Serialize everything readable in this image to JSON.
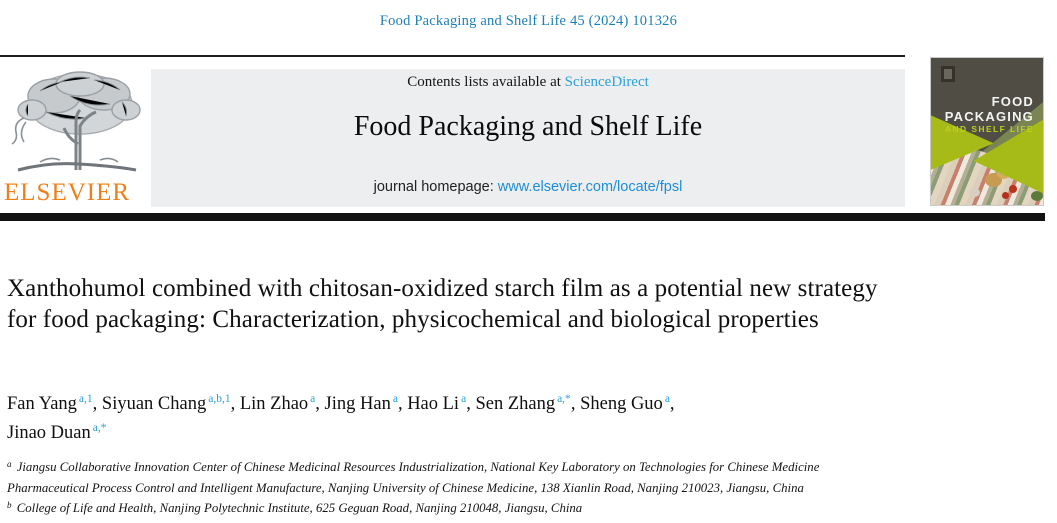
{
  "page": {
    "citation": "Food Packaging and Shelf Life 45 (2024) 101326"
  },
  "header": {
    "contents_prefix": "Contents lists available at ",
    "sciencedirect_label": "ScienceDirect",
    "journal_title": "Food Packaging and Shelf Life",
    "homepage_prefix": "journal homepage: ",
    "homepage_url": "www.elsevier.com/locate/fpsl",
    "elsevier_label": "ELSEVIER"
  },
  "cover": {
    "title_line1": "FOOD",
    "title_line2": "PACKAGING",
    "title_line3": "AND SHELF LIFE"
  },
  "article": {
    "title": "Xanthohumol combined with chitosan-oxidized starch film as a potential new strategy for food packaging: Characterization, physicochemical and biological properties",
    "authors": [
      {
        "name": "Fan Yang",
        "sup": "a,1",
        "sep": ", "
      },
      {
        "name": "Siyuan Chang",
        "sup": "a,b,1",
        "sep": ", "
      },
      {
        "name": "Lin Zhao",
        "sup": "a",
        "sep": ", "
      },
      {
        "name": "Jing Han",
        "sup": "a",
        "sep": ", "
      },
      {
        "name": "Hao Li",
        "sup": "a",
        "sep": ", "
      },
      {
        "name": "Sen Zhang",
        "sup": "a,*",
        "sep": ", "
      },
      {
        "name": "Sheng Guo",
        "sup": "a",
        "sep": ",",
        "break": true
      },
      {
        "name": "Jinao Duan",
        "sup": "a,*",
        "sep": ""
      }
    ],
    "affiliations": [
      {
        "sup": "a",
        "text": "Jiangsu Collaborative Innovation Center of Chinese Medicinal Resources Industrialization, National Key Laboratory on Technologies for Chinese Medicine Pharmaceutical Process Control and Intelligent Manufacture, Nanjing University of Chinese Medicine, 138 Xianlin Road, Nanjing 210023, Jiangsu, China"
      },
      {
        "sup": "b",
        "text": "College of Life and Health, Nanjing Polytechnic Institute, 625 Geguan Road, Nanjing 210048, Jiangsu, China"
      }
    ]
  },
  "colors": {
    "citation_blue": "#1d7fb8",
    "link_blue": "#2aa2dc",
    "homepage_link_blue": "#1c8ed8",
    "elsevier_orange": "#ef7f1b",
    "banner_gray": "#eceeef",
    "bar_black": "#121212",
    "cover_bright_green": "#a6bb17",
    "cover_olive": "#7b8553",
    "cover_dark": "#4f4d44",
    "cover_sub_green": "#bccf20"
  }
}
